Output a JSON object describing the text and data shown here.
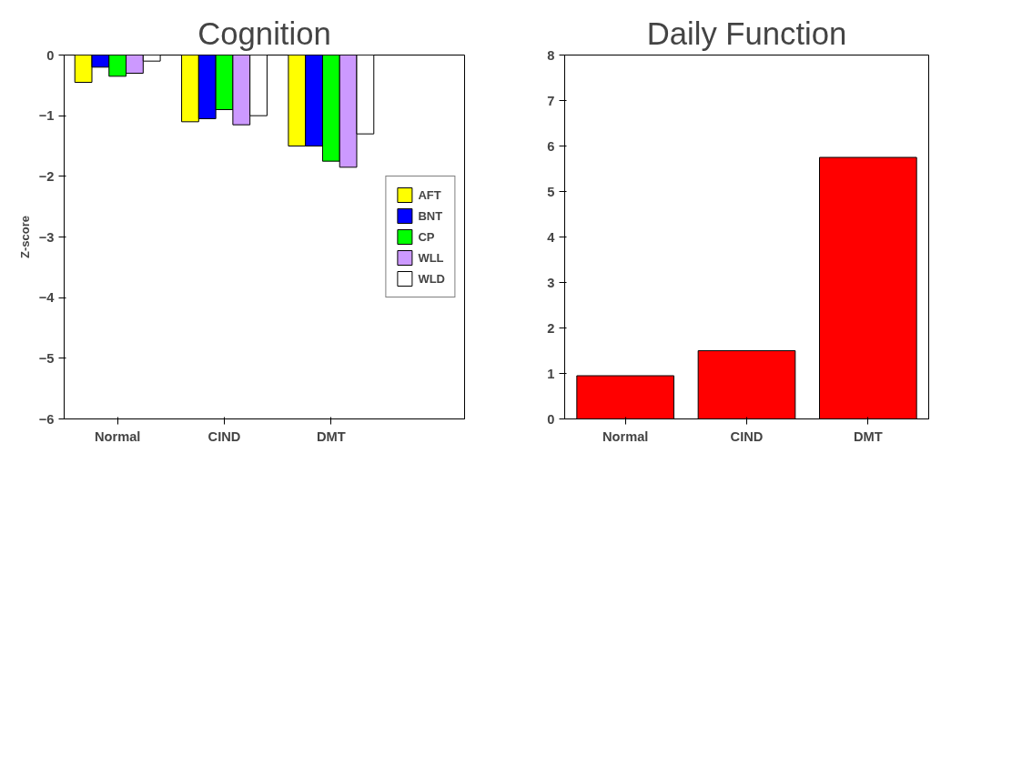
{
  "chart_data": [
    {
      "type": "bar",
      "title": "Cognition",
      "ylabel": "Z-score",
      "categories": [
        "Normal",
        "CIND",
        "DMT"
      ],
      "ylim": [
        -6,
        0
      ],
      "yticks": [
        0,
        -1,
        -2,
        -3,
        -4,
        -5,
        -6
      ],
      "grid": false,
      "legend": "right",
      "series": [
        {
          "name": "AFT",
          "color": "#ffff00",
          "values": [
            -0.45,
            -1.1,
            -1.5
          ]
        },
        {
          "name": "BNT",
          "color": "#0000ff",
          "values": [
            -0.2,
            -1.05,
            -1.5
          ]
        },
        {
          "name": "CP",
          "color": "#00ff00",
          "values": [
            -0.35,
            -0.9,
            -1.75
          ]
        },
        {
          "name": "WLL",
          "color": "#cc99ff",
          "values": [
            -0.3,
            -1.15,
            -1.85
          ]
        },
        {
          "name": "WLD",
          "color": "#ffffff",
          "values": [
            -0.1,
            -1.0,
            -1.3
          ]
        }
      ]
    },
    {
      "type": "bar",
      "title": "Daily Function",
      "categories": [
        "Normal",
        "CIND",
        "DMT"
      ],
      "ylim": [
        0,
        8
      ],
      "yticks": [
        0,
        1,
        2,
        3,
        4,
        5,
        6,
        7,
        8
      ],
      "grid": false,
      "legend": false,
      "series": [
        {
          "color": "#ff0000",
          "values": [
            0.95,
            1.5,
            5.75
          ]
        }
      ]
    }
  ]
}
